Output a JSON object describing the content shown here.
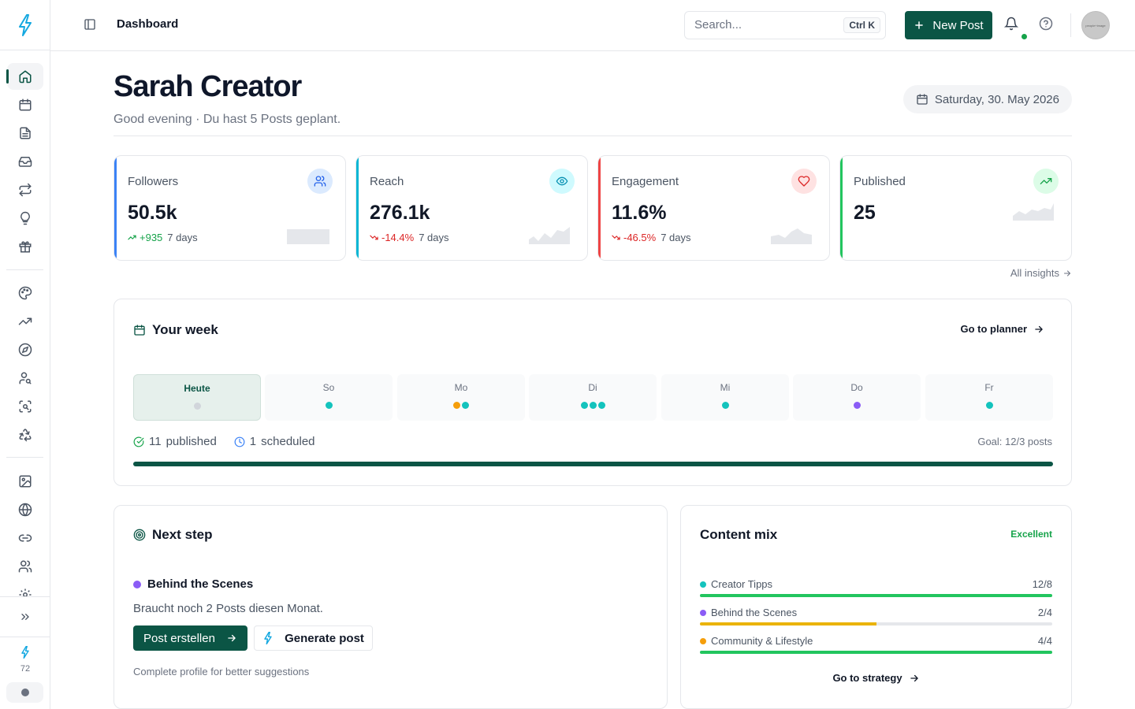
{
  "topbar": {
    "breadcrumb": "Dashboard",
    "search_placeholder": "Search...",
    "search_shortcut": "Ctrl K",
    "new_post_label": "New Post",
    "avatar_text": "people+image"
  },
  "sidebar": {
    "items": [
      {
        "name": "home",
        "icon": "home-icon",
        "active": true
      },
      {
        "name": "calendar",
        "icon": "calendar-icon"
      },
      {
        "name": "posts",
        "icon": "document-icon"
      },
      {
        "name": "inbox",
        "icon": "inbox-icon"
      },
      {
        "name": "repurpose",
        "icon": "repeat-icon"
      },
      {
        "name": "ideas",
        "icon": "lightbulb-icon"
      },
      {
        "name": "gifts",
        "icon": "gift-icon"
      },
      {
        "name": "brand",
        "icon": "palette-icon"
      },
      {
        "name": "analytics",
        "icon": "trending-up-icon"
      },
      {
        "name": "discover",
        "icon": "compass-icon"
      },
      {
        "name": "audience",
        "icon": "user-search-icon"
      },
      {
        "name": "scan",
        "icon": "scan-search-icon"
      },
      {
        "name": "recycle",
        "icon": "recycle-icon"
      },
      {
        "name": "media",
        "icon": "image-icon"
      },
      {
        "name": "web",
        "icon": "globe-icon"
      },
      {
        "name": "links",
        "icon": "link-icon"
      },
      {
        "name": "team",
        "icon": "users-icon"
      },
      {
        "name": "settings",
        "icon": "settings-icon"
      }
    ],
    "expand_icon": "chevrons-right-icon",
    "credits": "72"
  },
  "header": {
    "title": "Sarah Creator",
    "subtitle": "Good evening · Du hast 5 Posts geplant.",
    "date": "Saturday, 30. May 2026"
  },
  "stats": [
    {
      "label": "Followers",
      "value": "50.5k",
      "delta": "+935",
      "period": "7 days",
      "trend": "up",
      "color": "#3b82f6",
      "icon": "users-icon"
    },
    {
      "label": "Reach",
      "value": "276.1k",
      "delta": "-14.4%",
      "period": "7 days",
      "trend": "down",
      "color": "#06b6d4",
      "icon": "eye-icon"
    },
    {
      "label": "Engagement",
      "value": "11.6%",
      "delta": "-46.5%",
      "period": "7 days",
      "trend": "down",
      "color": "#ef4444",
      "icon": "heart-icon"
    },
    {
      "label": "Published",
      "value": "25",
      "delta": "",
      "period": "",
      "trend": "up",
      "color": "#22c55e",
      "icon": "trending-up-icon"
    }
  ],
  "all_insights": "All insights",
  "week": {
    "title": "Your week",
    "planner_link": "Go to planner",
    "days": [
      {
        "label": "Heute",
        "dots": [
          "#d1d5db"
        ],
        "today": true
      },
      {
        "label": "So",
        "dots": [
          "#14c3bd"
        ]
      },
      {
        "label": "Mo",
        "dots": [
          "#f59e0b",
          "#14c3bd"
        ]
      },
      {
        "label": "Di",
        "dots": [
          "#14c3bd",
          "#14c3bd",
          "#14c3bd"
        ]
      },
      {
        "label": "Mi",
        "dots": [
          "#14c3bd"
        ]
      },
      {
        "label": "Do",
        "dots": [
          "#8b5cf6"
        ]
      },
      {
        "label": "Fr",
        "dots": [
          "#14c3bd"
        ]
      }
    ],
    "published_count": "11",
    "published_label": "published",
    "scheduled_count": "1",
    "scheduled_label": "scheduled",
    "goal": "Goal: 12/3 posts",
    "progress": 1.0
  },
  "next_step": {
    "title": "Next step",
    "category": "Behind the Scenes",
    "text": "Braucht noch 2 Posts diesen Monat.",
    "primary_button": "Post erstellen",
    "secondary_button": "Generate post",
    "hint": "Complete profile for better suggestions"
  },
  "content_mix": {
    "title": "Content mix",
    "badge": "Excellent",
    "rows": [
      {
        "label": "Creator Tipps",
        "count": "12/8",
        "color": "#14c3bd",
        "bar_color": "#22c55e",
        "fill": 1.0
      },
      {
        "label": "Behind the Scenes",
        "count": "2/4",
        "color": "#8b5cf6",
        "bar_color": "#eab308",
        "fill": 0.5
      },
      {
        "label": "Community & Lifestyle",
        "count": "4/4",
        "color": "#f59e0b",
        "bar_color": "#22c55e",
        "fill": 1.0
      }
    ],
    "strategy_link": "Go to strategy"
  },
  "colors": {
    "brand": "#0b5545",
    "logo": "#14a8e0"
  }
}
